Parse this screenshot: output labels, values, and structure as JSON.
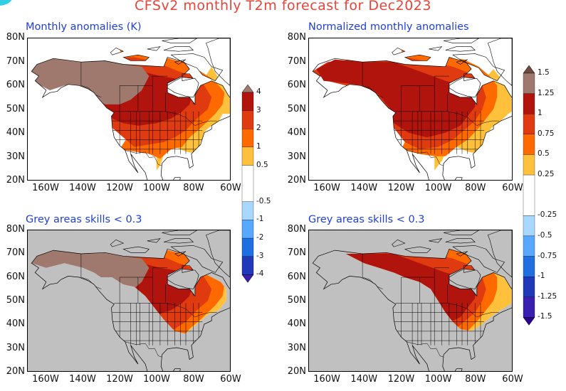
{
  "title": "CFSv2 monthly T2m forecast for Dec2023",
  "panels": [
    {
      "title": "Monthly anomalies (K)",
      "colorbar": "abs",
      "masked": false
    },
    {
      "title": "Normalized monthly anomalies",
      "colorbar": "norm",
      "masked": false
    },
    {
      "title": "Grey areas skills < 0.3",
      "colorbar": "abs",
      "masked": true
    },
    {
      "title": "Grey areas skills < 0.3",
      "colorbar": "norm",
      "masked": true
    }
  ],
  "axes": {
    "lat_ticks": [
      "80N",
      "70N",
      "60N",
      "50N",
      "40N",
      "30N",
      "20N"
    ],
    "lon_ticks": [
      "160W",
      "140W",
      "120W",
      "100W",
      "80W",
      "60W"
    ],
    "lat_range": [
      20,
      80
    ],
    "lon_range": [
      -170,
      -60
    ]
  },
  "colorbars": {
    "abs": {
      "labels": [
        "4",
        "3",
        "2",
        "1",
        "0.5",
        "-0.5",
        "-1",
        "-2",
        "-3",
        "-4"
      ]
    },
    "norm": {
      "labels": [
        "1.5",
        "1.25",
        "1",
        "0.75",
        "0.5",
        "0.25",
        "-0.25",
        "-0.5",
        "-0.75",
        "-1",
        "-1.25",
        "-1.5"
      ]
    }
  },
  "colors": {
    "title": "#e8443a",
    "panel_title": "#1f3fd8",
    "grey_mask": "#c0c0c0",
    "bin_05_1": "#ffc13b",
    "bin_1_2": "#ff6a00",
    "bin_2_3": "#e03a10",
    "bin_3_4": "#b0140c",
    "bin_4_plus": "#a0796e",
    "extreme": "#6e4a40",
    "cool_1": "#a8d8ff",
    "cool_2": "#58a8ff",
    "cool_3": "#1f6fe0",
    "cool_4": "#1f39b8",
    "cool_5": "#3a1fb0",
    "cool_6": "#2a0090"
  }
}
